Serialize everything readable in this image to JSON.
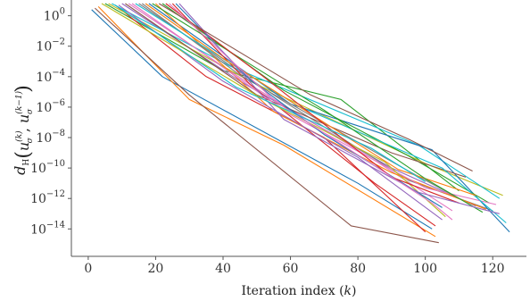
{
  "chart_data": {
    "type": "line",
    "xlabel": "Iteration index (k)",
    "ylabel_parts": {
      "d": "d",
      "d_sub": "H",
      "u": "u",
      "sigma": "σ",
      "sup_k": "(k)",
      "sup_km1": "(k−1)"
    },
    "yscale": "log",
    "xlim": [
      -5,
      130
    ],
    "ylim_exp": [
      -15.8,
      0.8
    ],
    "xticks": [
      0,
      20,
      40,
      60,
      80,
      100,
      120
    ],
    "yticks_exp": [
      0,
      -2,
      -4,
      -6,
      -8,
      -10,
      -12,
      -14
    ],
    "ytick_base": "10",
    "grid": false,
    "legend": "none",
    "series": [
      {
        "color": "#1f77b4",
        "points": [
          [
            1,
            0.4
          ],
          [
            22,
            -4.0
          ],
          [
            80,
            -11.0
          ],
          [
            102,
            -14.0
          ]
        ]
      },
      {
        "color": "#ff7f0e",
        "points": [
          [
            3,
            0.6
          ],
          [
            30,
            -5.5
          ],
          [
            58,
            -8.5
          ],
          [
            103,
            -14.5
          ]
        ]
      },
      {
        "color": "#2ca02c",
        "points": [
          [
            5,
            0.8
          ],
          [
            40,
            -3.6
          ],
          [
            75,
            -5.5
          ],
          [
            110,
            -11.5
          ]
        ]
      },
      {
        "color": "#d62728",
        "points": [
          [
            8,
            0.7
          ],
          [
            35,
            -4.0
          ],
          [
            70,
            -8.0
          ],
          [
            100,
            -14.2
          ]
        ]
      },
      {
        "color": "#9467bd",
        "points": [
          [
            10,
            0.8
          ],
          [
            45,
            -4.3
          ],
          [
            90,
            -10.0
          ],
          [
            115,
            -12.5
          ]
        ]
      },
      {
        "color": "#8c564b",
        "points": [
          [
            2,
            0.5
          ],
          [
            30,
            -5.2
          ],
          [
            78,
            -13.8
          ],
          [
            104,
            -14.9
          ]
        ]
      },
      {
        "color": "#e377c2",
        "points": [
          [
            12,
            0.8
          ],
          [
            50,
            -4.8
          ],
          [
            85,
            -9.5
          ],
          [
            108,
            -12.8
          ]
        ]
      },
      {
        "color": "#7f7f7f",
        "points": [
          [
            15,
            0.8
          ],
          [
            55,
            -5.2
          ],
          [
            95,
            -10.8
          ],
          [
            120,
            -12.8
          ]
        ]
      },
      {
        "color": "#bcbd22",
        "points": [
          [
            6,
            0.8
          ],
          [
            48,
            -4.3
          ],
          [
            100,
            -9.7
          ],
          [
            123,
            -11.8
          ]
        ]
      },
      {
        "color": "#17becf",
        "points": [
          [
            7,
            0.8
          ],
          [
            42,
            -3.3
          ],
          [
            98,
            -8.5
          ],
          [
            122,
            -12.0
          ]
        ]
      },
      {
        "color": "#1f77b4",
        "points": [
          [
            18,
            0.8
          ],
          [
            60,
            -5.8
          ],
          [
            102,
            -8.8
          ],
          [
            125,
            -14.2
          ]
        ]
      },
      {
        "color": "#ff7f0e",
        "points": [
          [
            20,
            0.8
          ],
          [
            55,
            -6.3
          ],
          [
            90,
            -10.3
          ],
          [
            118,
            -12.7
          ]
        ]
      },
      {
        "color": "#2ca02c",
        "points": [
          [
            22,
            0.8
          ],
          [
            58,
            -4.9
          ],
          [
            95,
            -9.2
          ],
          [
            119,
            -12.3
          ]
        ]
      },
      {
        "color": "#d62728",
        "points": [
          [
            25,
            0.8
          ],
          [
            48,
            -4.5
          ],
          [
            85,
            -11.0
          ],
          [
            103,
            -13.8
          ]
        ]
      },
      {
        "color": "#9467bd",
        "points": [
          [
            9,
            0.7
          ],
          [
            40,
            -4.3
          ],
          [
            80,
            -9.3
          ],
          [
            105,
            -13.4
          ]
        ]
      },
      {
        "color": "#8c564b",
        "points": [
          [
            11,
            0.8
          ],
          [
            50,
            -5.2
          ],
          [
            90,
            -9.0
          ],
          [
            112,
            -10.6
          ]
        ]
      },
      {
        "color": "#e377c2",
        "points": [
          [
            13,
            0.8
          ],
          [
            60,
            -6.5
          ],
          [
            100,
            -11.3
          ],
          [
            121,
            -12.4
          ]
        ]
      },
      {
        "color": "#7f7f7f",
        "points": [
          [
            16,
            0.8
          ],
          [
            45,
            -3.9
          ],
          [
            95,
            -10.2
          ],
          [
            110,
            -12.0
          ]
        ]
      },
      {
        "color": "#bcbd22",
        "points": [
          [
            4,
            0.8
          ],
          [
            52,
            -5.5
          ],
          [
            88,
            -9.6
          ],
          [
            106,
            -13.2
          ]
        ]
      },
      {
        "color": "#17becf",
        "points": [
          [
            14,
            0.8
          ],
          [
            62,
            -5.9
          ],
          [
            105,
            -10.0
          ],
          [
            124,
            -13.6
          ]
        ]
      },
      {
        "color": "#1f77b4",
        "points": [
          [
            26,
            0.8
          ],
          [
            48,
            -4.2
          ],
          [
            70,
            -7.8
          ],
          [
            105,
            -12.6
          ]
        ]
      },
      {
        "color": "#ff7f0e",
        "points": [
          [
            17,
            0.8
          ],
          [
            40,
            -2.8
          ],
          [
            92,
            -10.1
          ],
          [
            115,
            -11.8
          ]
        ]
      },
      {
        "color": "#2ca02c",
        "points": [
          [
            19,
            0.8
          ],
          [
            70,
            -6.2
          ],
          [
            100,
            -10.7
          ],
          [
            117,
            -12.9
          ]
        ]
      },
      {
        "color": "#d62728",
        "points": [
          [
            23,
            0.8
          ],
          [
            52,
            -4.0
          ],
          [
            90,
            -10.6
          ],
          [
            110,
            -12.3
          ]
        ]
      },
      {
        "color": "#9467bd",
        "points": [
          [
            27,
            0.8
          ],
          [
            58,
            -6.8
          ],
          [
            98,
            -11.6
          ],
          [
            122,
            -13.0
          ]
        ]
      },
      {
        "color": "#8c564b",
        "points": [
          [
            21,
            0.8
          ],
          [
            66,
            -5.2
          ],
          [
            95,
            -8.1
          ],
          [
            114,
            -10.2
          ]
        ]
      },
      {
        "color": "#e377c2",
        "points": [
          [
            24,
            0.8
          ],
          [
            56,
            -5.7
          ],
          [
            102,
            -12.3
          ],
          [
            108,
            -13.4
          ]
        ]
      },
      {
        "color": "#17becf",
        "points": [
          [
            8,
            0.7
          ],
          [
            44,
            -4.7
          ],
          [
            84,
            -8.7
          ],
          [
            100,
            -10.9
          ]
        ]
      }
    ]
  }
}
